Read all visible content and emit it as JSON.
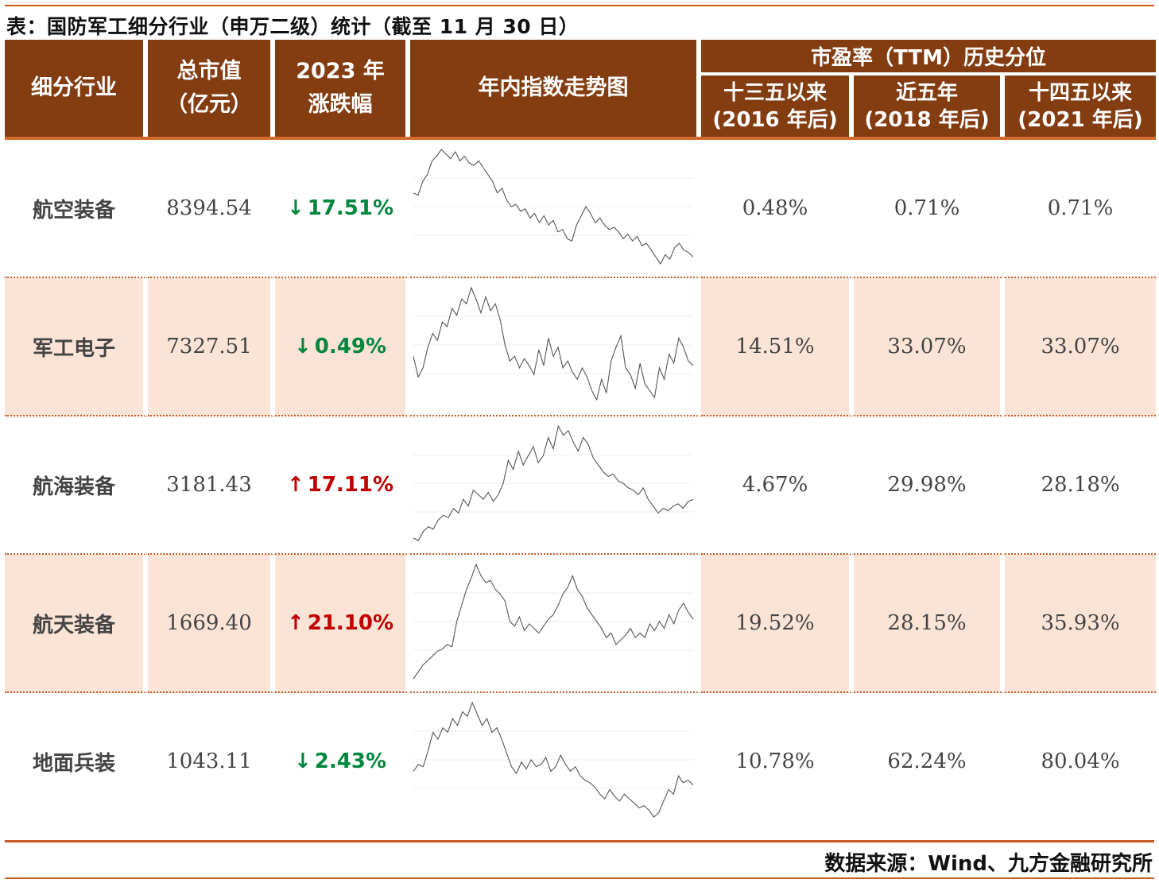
{
  "title": "表：国防军工细分行业（申万二级）统计（截至 11 月 30 日）",
  "headers": {
    "sector": "细分行业",
    "mktcap_line1": "总市值",
    "mktcap_line2": "（亿元）",
    "change_line1": "2023 年",
    "change_line2": "涨跌幅",
    "trend": "年内指数走势图",
    "pe_group": "市盈率（TTM）历史分位",
    "pe_col1_line1": "十三五以来",
    "pe_col1_line2": "(2016 年后)",
    "pe_col2_line1": "近五年",
    "pe_col2_line2": "(2018 年后)",
    "pe_col3_line1": "十四五以来",
    "pe_col3_line2": "(2021 年后)"
  },
  "colors": {
    "header_bg": "#843c11",
    "accent_line": "#c55a22",
    "row_shade": "#fbe3d6",
    "up": "#c00000",
    "down": "#00863d"
  },
  "rows": [
    {
      "sector": "航空装备",
      "mktcap": "8394.54",
      "direction": "down",
      "arrow": "↓",
      "change": "17.51%",
      "pe_2016": "0.48%",
      "pe_2018": "0.71%",
      "pe_2021": "0.71%",
      "trend": [
        0.62,
        0.6,
        0.72,
        0.78,
        0.9,
        0.94,
        1.0,
        0.96,
        0.92,
        0.98,
        0.9,
        0.94,
        0.88,
        0.86,
        0.9,
        0.84,
        0.78,
        0.72,
        0.62,
        0.66,
        0.56,
        0.5,
        0.52,
        0.46,
        0.48,
        0.4,
        0.44,
        0.36,
        0.42,
        0.34,
        0.38,
        0.28,
        0.3,
        0.22,
        0.2,
        0.34,
        0.42,
        0.5,
        0.44,
        0.36,
        0.4,
        0.34,
        0.3,
        0.32,
        0.28,
        0.22,
        0.26,
        0.2,
        0.24,
        0.16,
        0.18,
        0.12,
        0.06,
        0.0,
        0.08,
        0.04,
        0.14,
        0.18,
        0.12,
        0.1,
        0.06
      ]
    },
    {
      "sector": "军工电子",
      "mktcap": "7327.51",
      "direction": "down",
      "arrow": "↓",
      "change": "0.49%",
      "pe_2016": "14.51%",
      "pe_2018": "33.07%",
      "pe_2021": "33.07%",
      "trend": [
        0.4,
        0.22,
        0.3,
        0.48,
        0.6,
        0.54,
        0.7,
        0.66,
        0.82,
        0.76,
        0.9,
        0.86,
        1.0,
        0.9,
        0.78,
        0.92,
        0.8,
        0.86,
        0.72,
        0.5,
        0.36,
        0.4,
        0.3,
        0.38,
        0.32,
        0.24,
        0.46,
        0.32,
        0.56,
        0.4,
        0.48,
        0.3,
        0.36,
        0.26,
        0.2,
        0.3,
        0.22,
        0.1,
        0.02,
        0.2,
        0.08,
        0.36,
        0.48,
        0.58,
        0.3,
        0.24,
        0.12,
        0.34,
        0.16,
        0.1,
        0.04,
        0.3,
        0.2,
        0.42,
        0.34,
        0.56,
        0.48,
        0.36,
        0.32
      ]
    },
    {
      "sector": "航海装备",
      "mktcap": "3181.43",
      "direction": "up",
      "arrow": "↑",
      "change": "17.11%",
      "pe_2016": "4.67%",
      "pe_2018": "29.98%",
      "pe_2021": "28.18%",
      "trend": [
        0.02,
        0.0,
        0.08,
        0.12,
        0.1,
        0.18,
        0.22,
        0.2,
        0.28,
        0.24,
        0.36,
        0.3,
        0.44,
        0.4,
        0.36,
        0.42,
        0.34,
        0.4,
        0.5,
        0.7,
        0.62,
        0.78,
        0.66,
        0.74,
        0.82,
        0.68,
        0.74,
        0.9,
        0.8,
        1.0,
        0.92,
        0.96,
        0.86,
        0.78,
        0.9,
        0.84,
        0.72,
        0.66,
        0.6,
        0.56,
        0.58,
        0.52,
        0.5,
        0.46,
        0.44,
        0.4,
        0.46,
        0.36,
        0.3,
        0.24,
        0.28,
        0.26,
        0.3,
        0.32,
        0.28,
        0.34,
        0.36
      ]
    },
    {
      "sector": "航天装备",
      "mktcap": "1669.40",
      "direction": "up",
      "arrow": "↑",
      "change": "21.10%",
      "pe_2016": "19.52%",
      "pe_2018": "28.15%",
      "pe_2021": "35.93%",
      "trend": [
        0.0,
        0.06,
        0.12,
        0.16,
        0.2,
        0.24,
        0.26,
        0.3,
        0.28,
        0.5,
        0.64,
        0.78,
        0.88,
        1.0,
        0.9,
        0.84,
        0.86,
        0.78,
        0.74,
        0.68,
        0.5,
        0.46,
        0.54,
        0.42,
        0.48,
        0.44,
        0.4,
        0.46,
        0.52,
        0.56,
        0.64,
        0.74,
        0.8,
        0.9,
        0.78,
        0.72,
        0.62,
        0.56,
        0.5,
        0.44,
        0.36,
        0.4,
        0.3,
        0.34,
        0.38,
        0.44,
        0.36,
        0.4,
        0.36,
        0.48,
        0.42,
        0.5,
        0.44,
        0.56,
        0.48,
        0.6,
        0.66,
        0.58,
        0.52
      ]
    },
    {
      "sector": "地面兵装",
      "mktcap": "1043.11",
      "direction": "down",
      "arrow": "↓",
      "change": "2.43%",
      "pe_2016": "10.78%",
      "pe_2018": "62.24%",
      "pe_2021": "80.04%",
      "trend": [
        0.4,
        0.46,
        0.44,
        0.58,
        0.74,
        0.68,
        0.78,
        0.74,
        0.86,
        0.8,
        0.92,
        0.88,
        1.0,
        0.9,
        0.8,
        0.86,
        0.74,
        0.78,
        0.68,
        0.56,
        0.44,
        0.38,
        0.48,
        0.42,
        0.5,
        0.44,
        0.46,
        0.52,
        0.4,
        0.44,
        0.54,
        0.46,
        0.4,
        0.44,
        0.36,
        0.32,
        0.3,
        0.26,
        0.2,
        0.16,
        0.24,
        0.18,
        0.14,
        0.2,
        0.16,
        0.12,
        0.08,
        0.1,
        0.06,
        0.0,
        0.04,
        0.14,
        0.24,
        0.2,
        0.36,
        0.3,
        0.32,
        0.28
      ]
    }
  ],
  "source": "数据来源：Wind、九方金融研究所"
}
